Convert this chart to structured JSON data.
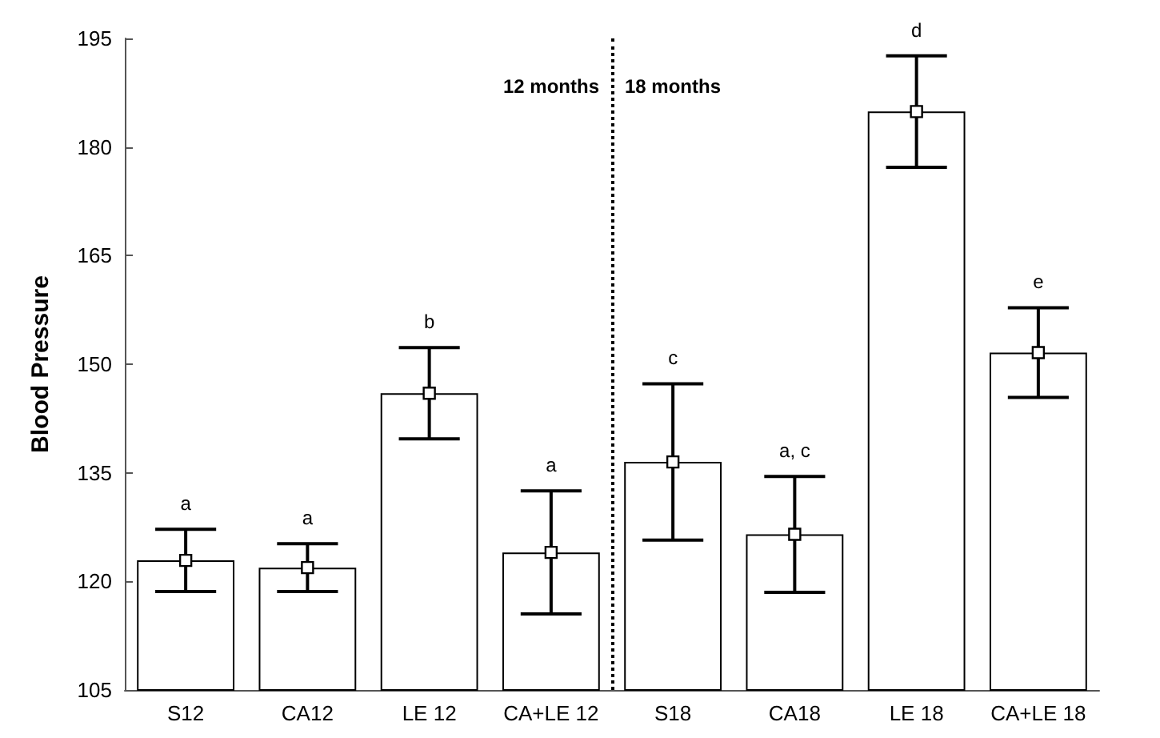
{
  "chart_data": {
    "type": "bar",
    "ylabel": "Blood Pressure",
    "categories": [
      "S12",
      "CA12",
      "LE 12",
      "CA+LE 12",
      "S18",
      "CA18",
      "LE 18",
      "CA+LE 18"
    ],
    "series": [
      {
        "color": "#ffffff",
        "values": [
          122.9,
          121.9,
          146.0,
          124.0,
          136.5,
          126.5,
          184.9,
          151.6
        ],
        "errors": [
          4.3,
          3.3,
          6.3,
          8.5,
          10.8,
          8.0,
          7.7,
          6.2
        ]
      },
      {
        "type": "scatter",
        "color": "#ffffff",
        "x": [
          "S12",
          "CA12",
          "LE 12",
          "CA+LE 12",
          "S18",
          "CA18",
          "LE 18",
          "CA+LE 18"
        ],
        "values": [
          122.9,
          121.9,
          146.0,
          124.0,
          136.5,
          126.5,
          184.9,
          151.6
        ]
      }
    ],
    "marker": "square",
    "ylim": [
      105,
      195
    ],
    "yticks": [
      105,
      120,
      135,
      150,
      165,
      180,
      195
    ],
    "grid": false,
    "annotations": [
      "12 months",
      "18 months",
      "a",
      "a",
      "b",
      "a",
      "c",
      "a, c",
      "d",
      "e"
    ]
  }
}
